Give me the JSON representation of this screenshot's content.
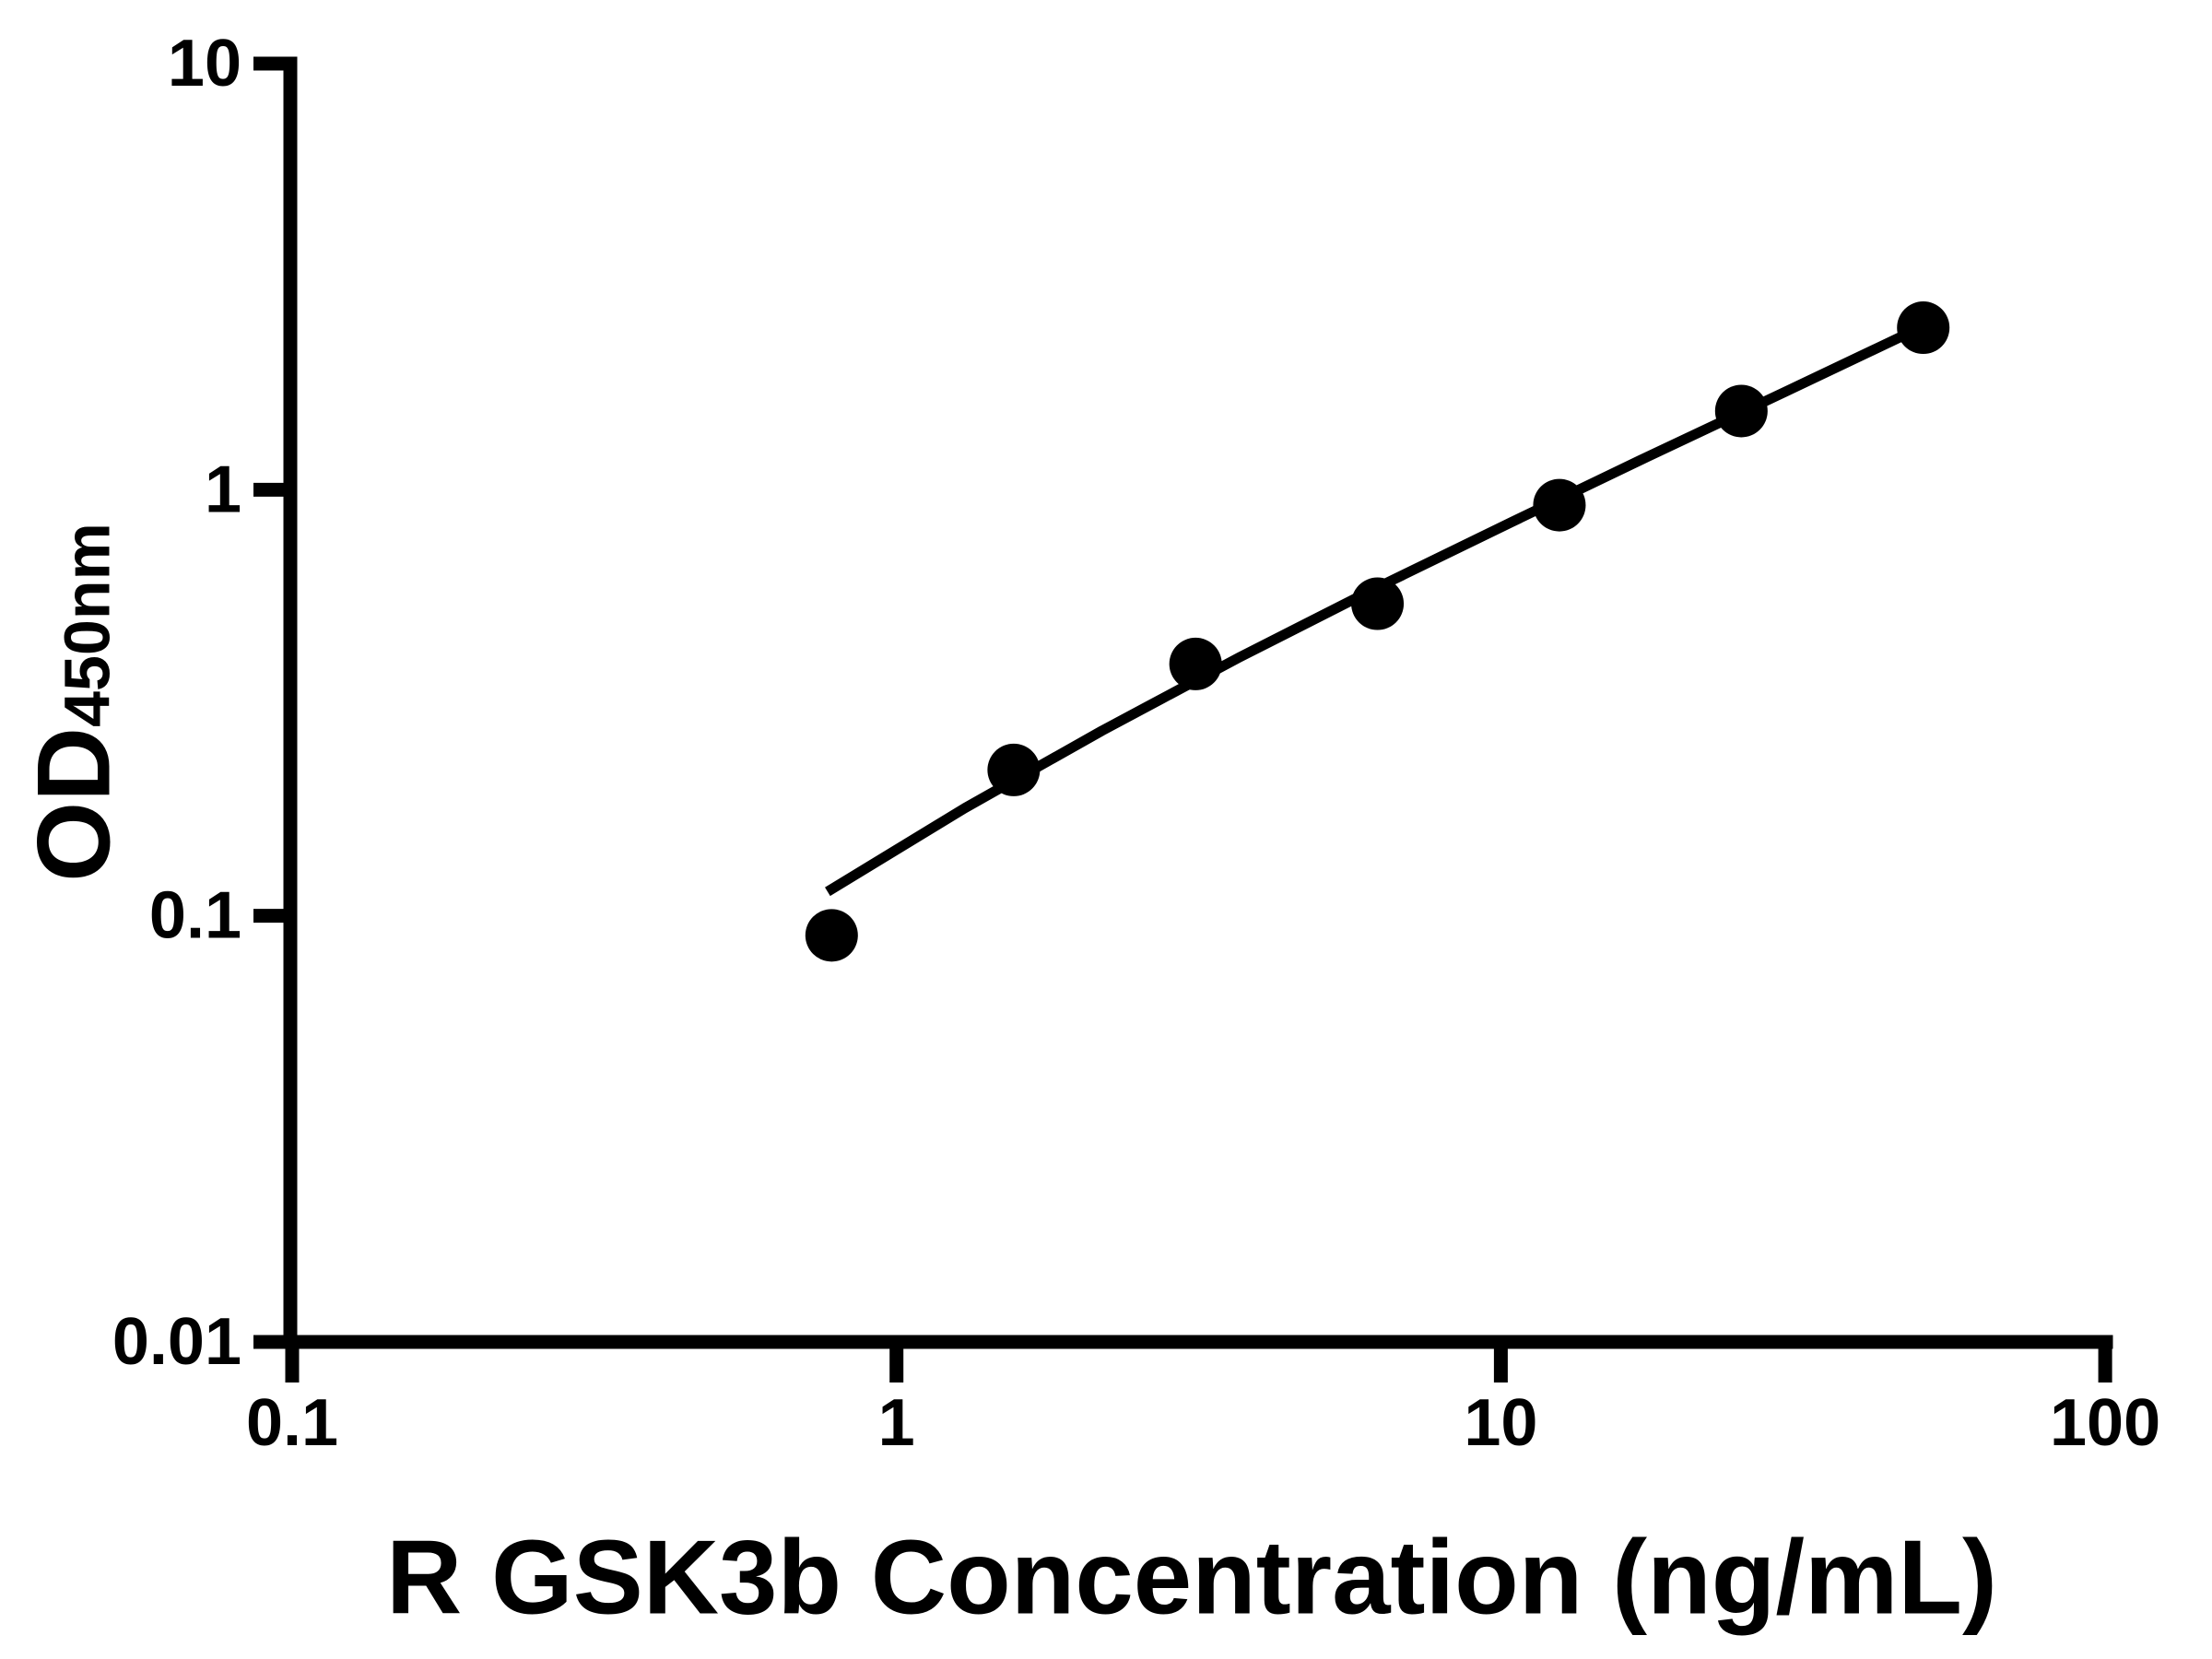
{
  "chart_data": {
    "type": "scatter",
    "title": "",
    "xlabel": "R GSK3b Concentration (ng/mL)",
    "ylabel": "OD450nm",
    "ylabel_parts": {
      "main": "OD",
      "sub": "450nm"
    },
    "x_scale": "log",
    "y_scale": "log",
    "xlim": [
      0.1,
      100
    ],
    "ylim": [
      0.01,
      10
    ],
    "grid": false,
    "legend": "none",
    "x_ticks": [
      {
        "value": 0.1,
        "label": "0.1"
      },
      {
        "value": 1,
        "label": "1"
      },
      {
        "value": 10,
        "label": "10"
      },
      {
        "value": 100,
        "label": "100"
      }
    ],
    "y_ticks": [
      {
        "value": 0.01,
        "label": "0.01"
      },
      {
        "value": 0.1,
        "label": "0.1"
      },
      {
        "value": 1,
        "label": "1"
      },
      {
        "value": 10,
        "label": "10"
      }
    ],
    "series": [
      {
        "name": "standard-curve-points",
        "marker": "filled-circle",
        "color": "#000000",
        "x": [
          0.781,
          1.563,
          3.125,
          6.25,
          12.5,
          25,
          50
        ],
        "y": [
          0.09,
          0.22,
          0.39,
          0.54,
          0.92,
          1.53,
          2.4
        ]
      }
    ],
    "fit_line": {
      "color": "#000000",
      "points": [
        [
          0.769,
          0.114
        ],
        [
          1.297,
          0.179
        ],
        [
          2.188,
          0.272
        ],
        [
          3.69,
          0.404
        ],
        [
          6.19,
          0.586
        ],
        [
          10.43,
          0.84
        ],
        [
          17.5,
          1.196
        ],
        [
          29.5,
          1.696
        ],
        [
          49.9,
          2.416
        ]
      ]
    },
    "colors": {
      "axes": "#000000",
      "background": "#ffffff"
    }
  }
}
